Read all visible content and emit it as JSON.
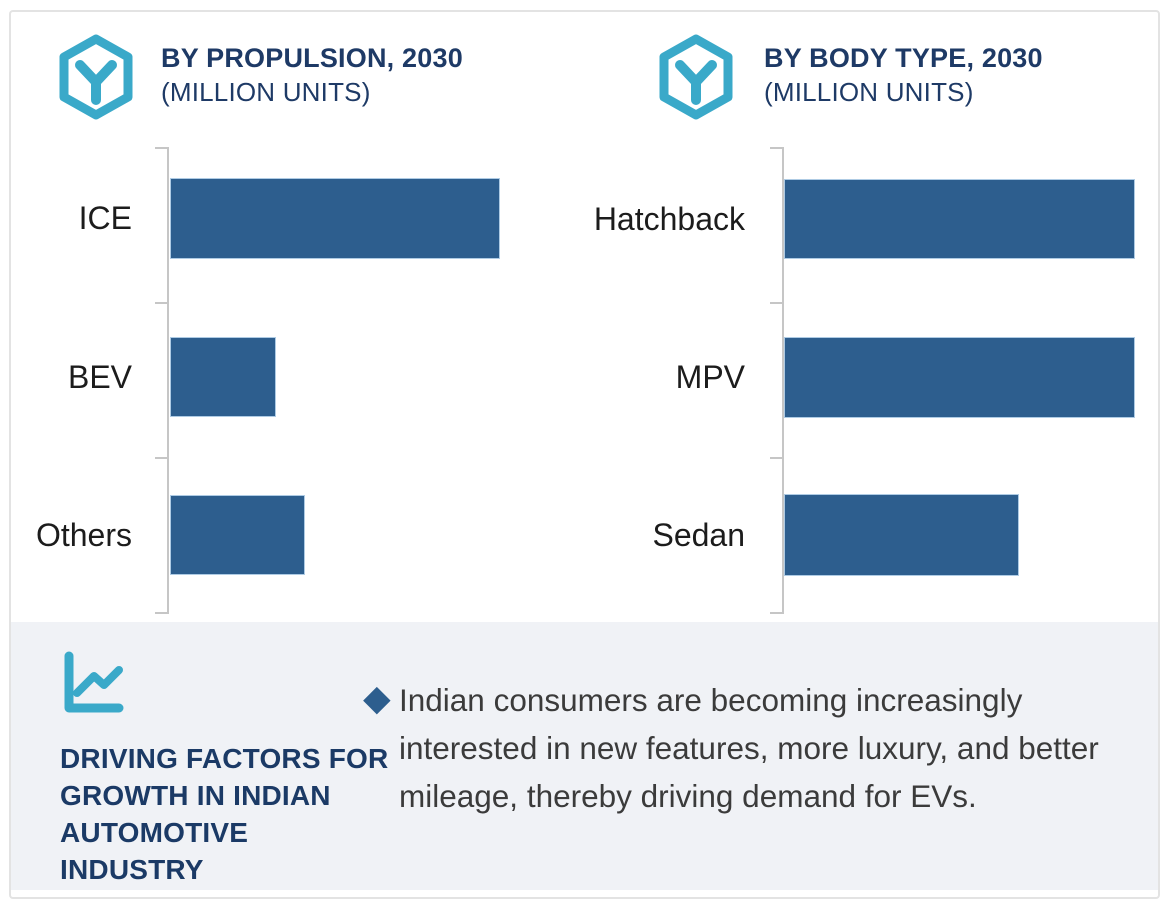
{
  "colors": {
    "accent_teal": "#3AA9C9",
    "navy": "#1E3A66",
    "bar_blue": "#2D5E8E",
    "axis_gray": "#C6C6C6",
    "panel_bg": "#F0F2F6",
    "card_border": "#E3E3E3",
    "body_text": "#3B3B3B"
  },
  "headers": [
    {
      "icon": "hexagon-y-icon",
      "line1": "BY PROPULSION, 2030",
      "line2": "(MILLION UNITS)"
    },
    {
      "icon": "hexagon-y-icon",
      "line1": "BY BODY TYPE, 2030",
      "line2": "(MILLION UNITS)"
    }
  ],
  "chart_data": [
    {
      "type": "bar",
      "orientation": "horizontal",
      "title": "BY PROPULSION, 2030 (MILLION UNITS)",
      "categories": [
        "ICE",
        "BEV",
        "Others"
      ],
      "values": [
        100,
        32,
        41
      ],
      "value_scale": "relative, longest bar = 100 (numeric axis not labeled in image)",
      "units": "Million Units",
      "xlabel": "",
      "ylabel": "",
      "grid": false,
      "legend": false,
      "value_labels_shown": false,
      "bar_color": "#2D5E8E"
    },
    {
      "type": "bar",
      "orientation": "horizontal",
      "title": "BY BODY TYPE, 2030 (MILLION UNITS)",
      "categories": [
        "Hatchback",
        "MPV",
        "Sedan"
      ],
      "values": [
        100,
        100,
        67
      ],
      "value_scale": "relative, longest bar = 100 (numeric axis not labeled in image)",
      "units": "Million Units",
      "xlabel": "",
      "ylabel": "",
      "grid": false,
      "legend": false,
      "value_labels_shown": false,
      "bar_color": "#2D5E8E"
    }
  ],
  "insight_panel": {
    "icon": "line-chart-icon",
    "heading": "DRIVING FACTORS FOR\nGROWTH IN INDIAN\nAUTOMOTIVE\nINDUSTRY",
    "bullet_glyph": "◆",
    "bullet_text": "Indian consumers are becoming increasingly interested in new features, more luxury, and better mileage, thereby driving demand for EVs."
  }
}
